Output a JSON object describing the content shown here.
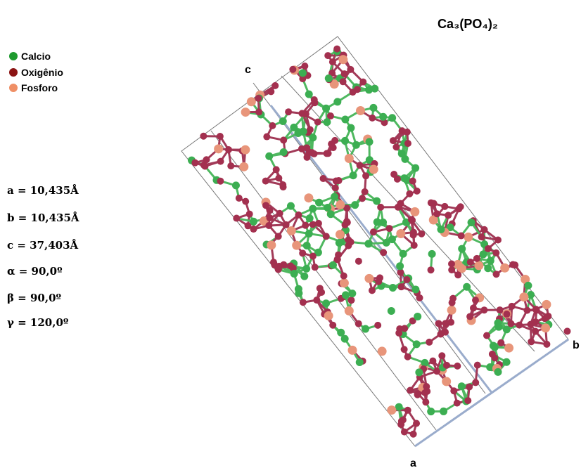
{
  "title": "Ca₃(PO₄)₂",
  "legend": [
    "Calcio",
    "Oxigênio",
    "Fosforo"
  ],
  "parameters": [
    "a = 10,435Å",
    "b = 10,435Å",
    "c = 37,403Å",
    "α = 90,0º",
    "β = 90,0º",
    "γ = 120,0º"
  ],
  "axes": {
    "c": "c",
    "a": "a",
    "b": "b"
  }
}
